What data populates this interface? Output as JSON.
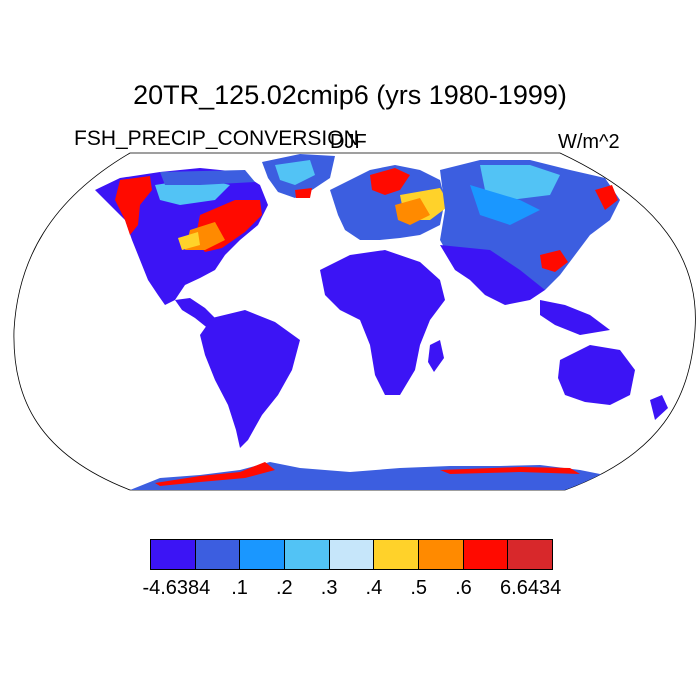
{
  "title": "20TR_125.02cmip6 (yrs 1980-1999)",
  "left_subtitle": "FSH_PRECIP_CONVERSION",
  "center_subtitle": "DJF",
  "right_subtitle": "W/m^2",
  "colorbar": {
    "colors": [
      "#3c14f5",
      "#3c5ee0",
      "#1a97ff",
      "#52c3f5",
      "#c6e6fa",
      "#ffd22a",
      "#ff8a00",
      "#ff0a00",
      "#d8282b"
    ],
    "labels": [
      "-4.6384",
      ".1",
      ".2",
      ".3",
      ".4",
      ".5",
      ".6",
      "6.6434"
    ]
  },
  "map_colors": {
    "land_low": "#3c14f5",
    "land_mid": "#3c5ee0",
    "ice": "#3c5ee0",
    "hot": "#ff0a00",
    "warm": "#ff8a00",
    "yellow": "#ffd22a",
    "light": "#52c3f5",
    "cyan": "#1a97ff"
  }
}
